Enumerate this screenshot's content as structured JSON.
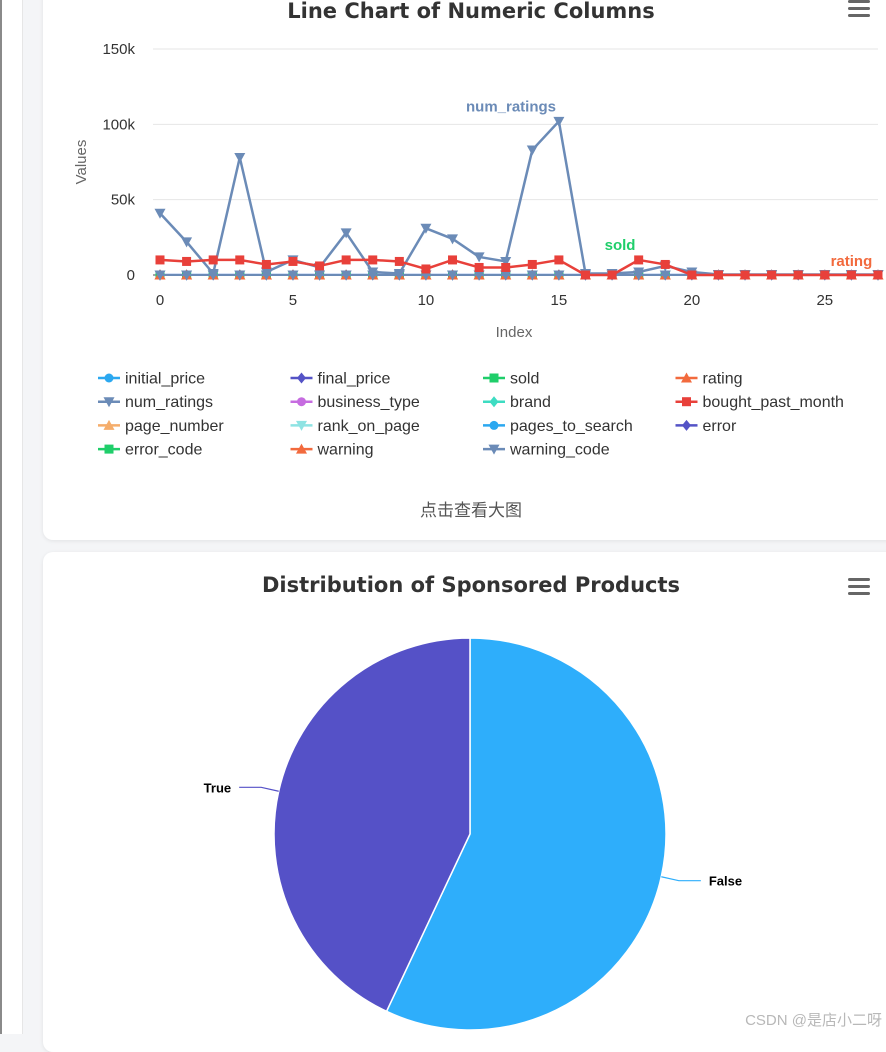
{
  "line_card": {
    "title": "Line Chart of Numeric Columns",
    "menu_icon": "hamburger-menu-icon",
    "enlarge_label": "点击查看大图"
  },
  "pie_card": {
    "title": "Distribution of Sponsored Products",
    "menu_icon": "hamburger-menu-icon"
  },
  "watermark": "CSDN @是店小二呀",
  "chart_data": [
    {
      "type": "line",
      "title": "Line Chart of Numeric Columns",
      "xlabel": "Index",
      "ylabel": "Values",
      "xlim": [
        0,
        27
      ],
      "ylim": [
        0,
        150000
      ],
      "x_ticks": [
        "0",
        "5",
        "10",
        "15",
        "20",
        "25"
      ],
      "y_ticks": [
        "0",
        "50k",
        "100k",
        "150k"
      ],
      "grid": "horizontal",
      "legend_position": "bottom",
      "x": [
        0,
        1,
        2,
        3,
        4,
        5,
        6,
        7,
        8,
        9,
        10,
        11,
        12,
        13,
        14,
        15,
        16,
        17,
        18,
        19,
        20,
        21,
        22,
        23,
        24,
        25,
        26,
        27
      ],
      "series": [
        {
          "name": "initial_price",
          "color": "#2ba8f0",
          "marker": "circle",
          "values": [
            60,
            60,
            60,
            60,
            60,
            60,
            60,
            60,
            60,
            60,
            60,
            60,
            60,
            60,
            60,
            60,
            60,
            60,
            60,
            60,
            60,
            60,
            60,
            60,
            60,
            60,
            60,
            60
          ]
        },
        {
          "name": "final_price",
          "color": "#5453c6",
          "marker": "diamond",
          "values": [
            50,
            50,
            50,
            50,
            50,
            50,
            50,
            50,
            50,
            50,
            50,
            50,
            50,
            50,
            50,
            50,
            50,
            50,
            50,
            50,
            50,
            50,
            50,
            50,
            50,
            50,
            50,
            50
          ]
        },
        {
          "name": "sold",
          "color": "#1fce6a",
          "marker": "square",
          "end_label": "sold",
          "values": [
            0,
            0,
            0,
            0,
            0,
            0,
            0,
            0,
            0,
            0,
            0,
            0,
            0,
            0,
            0,
            0,
            0,
            0,
            0,
            0,
            0,
            0,
            0,
            0,
            0,
            0,
            0,
            0
          ]
        },
        {
          "name": "rating",
          "color": "#f26a3d",
          "marker": "triangle",
          "end_label": "rating",
          "values": [
            4,
            4,
            4,
            4,
            4,
            4,
            4,
            4,
            4,
            4,
            4,
            4,
            4,
            4,
            4,
            4,
            4,
            4,
            4,
            4,
            4,
            4,
            4,
            4,
            4,
            4,
            4,
            4
          ]
        },
        {
          "name": "num_ratings",
          "color": "#6b8bb7",
          "marker": "triangle-down",
          "end_label": "num_ratings",
          "values": [
            41000,
            22000,
            1000,
            78000,
            2000,
            10000,
            5000,
            28000,
            2000,
            1000,
            31000,
            24000,
            12000,
            9000,
            83000,
            102000,
            1000,
            1000,
            2000,
            6000,
            2000,
            300,
            300,
            300,
            300,
            300,
            300,
            300
          ]
        },
        {
          "name": "business_type",
          "color": "#c66ce0",
          "marker": "circle",
          "values": [
            0,
            0,
            0,
            0,
            0,
            0,
            0,
            0,
            0,
            0,
            0,
            0,
            0,
            0,
            0,
            0,
            0,
            0,
            0,
            0,
            0,
            0,
            0,
            0,
            0,
            0,
            0,
            0
          ]
        },
        {
          "name": "brand",
          "color": "#3ddcc2",
          "marker": "diamond",
          "values": [
            0,
            0,
            0,
            0,
            0,
            0,
            0,
            0,
            0,
            0,
            0,
            0,
            0,
            0,
            0,
            0,
            0,
            0,
            0,
            0,
            0,
            0,
            0,
            0,
            0,
            0,
            0,
            0
          ]
        },
        {
          "name": "bought_past_month",
          "color": "#e8403a",
          "marker": "square",
          "values": [
            10000,
            9000,
            10000,
            10000,
            7000,
            9000,
            6000,
            10000,
            10000,
            9000,
            4000,
            10000,
            5000,
            5000,
            7000,
            10000,
            0,
            0,
            10000,
            7000,
            0,
            0,
            0,
            0,
            0,
            0,
            0,
            0
          ]
        },
        {
          "name": "page_number",
          "color": "#f5ad6b",
          "marker": "triangle",
          "values": [
            1,
            1,
            1,
            1,
            1,
            1,
            1,
            1,
            1,
            1,
            1,
            1,
            1,
            1,
            1,
            1,
            1,
            1,
            1,
            1,
            1,
            1,
            1,
            1,
            1,
            1,
            1,
            1
          ]
        },
        {
          "name": "rank_on_page",
          "color": "#8ee3e3",
          "marker": "triangle-down",
          "values": [
            1,
            2,
            3,
            4,
            5,
            6,
            7,
            8,
            9,
            10,
            11,
            12,
            13,
            14,
            15,
            16,
            17,
            18,
            19,
            20,
            21,
            22,
            23,
            24,
            25,
            26,
            27,
            28
          ]
        },
        {
          "name": "pages_to_search",
          "color": "#2ba8f0",
          "marker": "circle",
          "values": [
            0,
            0,
            0,
            0,
            0,
            0,
            0,
            0,
            0,
            0,
            0,
            0,
            0,
            0,
            0,
            0,
            0,
            0,
            0,
            0,
            0,
            0,
            0,
            0,
            0,
            0,
            0,
            0
          ]
        },
        {
          "name": "error",
          "color": "#5453c6",
          "marker": "diamond",
          "values": [
            0,
            0,
            0,
            0,
            0,
            0,
            0,
            0,
            0,
            0,
            0,
            0,
            0,
            0,
            0,
            0,
            0,
            0,
            0,
            0,
            0,
            0,
            0,
            0,
            0,
            0,
            0,
            0
          ]
        },
        {
          "name": "error_code",
          "color": "#1fce6a",
          "marker": "square",
          "values": [
            0,
            0,
            0,
            0,
            0,
            0,
            0,
            0,
            0,
            0,
            0,
            0,
            0,
            0,
            0,
            0,
            0,
            0,
            0,
            0,
            0,
            0,
            0,
            0,
            0,
            0,
            0,
            0
          ]
        },
        {
          "name": "warning",
          "color": "#f26a3d",
          "marker": "triangle",
          "values": [
            0,
            0,
            0,
            0,
            0,
            0,
            0,
            0,
            0,
            0,
            0,
            0,
            0,
            0,
            0,
            0,
            0,
            0,
            0,
            0,
            0,
            0,
            0,
            0,
            0,
            0,
            0,
            0
          ]
        },
        {
          "name": "warning_code",
          "color": "#6b8bb7",
          "marker": "triangle-down",
          "values": [
            0,
            0,
            0,
            0,
            0,
            0,
            0,
            0,
            0,
            0,
            0,
            0,
            0,
            0,
            0,
            0,
            0,
            0,
            0,
            0,
            0,
            0,
            0,
            0,
            0,
            0,
            0,
            0
          ]
        }
      ]
    },
    {
      "type": "pie",
      "title": "Distribution of Sponsored Products",
      "slices": [
        {
          "label": "False",
          "value": 57,
          "color": "#2eaefb"
        },
        {
          "label": "True",
          "value": 43,
          "color": "#5551c7"
        }
      ]
    }
  ]
}
